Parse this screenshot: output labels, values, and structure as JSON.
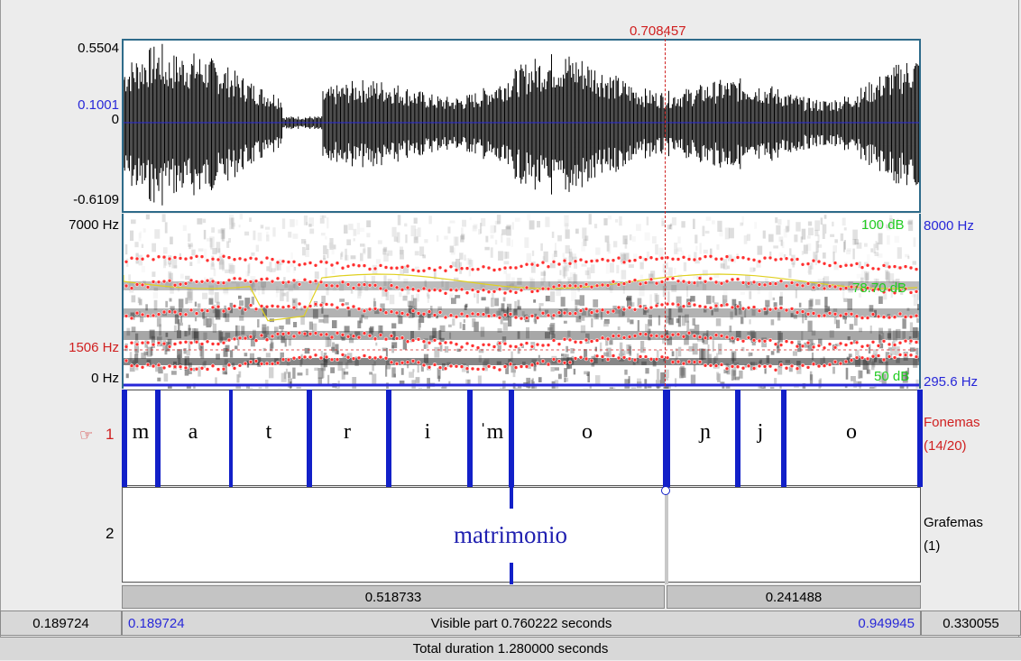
{
  "colors": {
    "accent_blue": "#1220c8",
    "cursor_red": "#d02020",
    "intensity_green": "#22cc22",
    "pitch_blue": "#2828d8"
  },
  "cursor": {
    "time": "0.708457"
  },
  "waveform": {
    "max": "0.5504",
    "level": "0.1001",
    "zero": "0",
    "min": "-0.6109"
  },
  "spectrogram": {
    "freq_top": "7000 Hz",
    "freq_cursor": "1506 Hz",
    "freq_bottom": "0 Hz",
    "intensity_top": "100 dB",
    "intensity_mid": "78.70 dB",
    "intensity_bottom": "50 dB",
    "pitch_top": "8000 Hz",
    "pitch_bottom": "295.6 Hz"
  },
  "tiers": [
    {
      "number": "1",
      "name": "Fonemas",
      "count": "(14/20)",
      "icon": "pointing-hand-icon",
      "intervals": [
        "m",
        "a",
        "t",
        "r",
        "i",
        "ˈm",
        "o",
        "ɲ",
        "j",
        "o"
      ]
    },
    {
      "number": "2",
      "name": "Grafemas",
      "count": "(1)",
      "intervals": [
        "matrimonio"
      ]
    }
  ],
  "selection": {
    "left_duration": "0.518733",
    "right_duration": "0.241488"
  },
  "visible": {
    "before": "0.189724",
    "start": "0.189724",
    "label": "Visible part 0.760222 seconds",
    "end": "0.949945",
    "after": "0.330055"
  },
  "total": {
    "label": "Total duration 1.280000 seconds"
  }
}
